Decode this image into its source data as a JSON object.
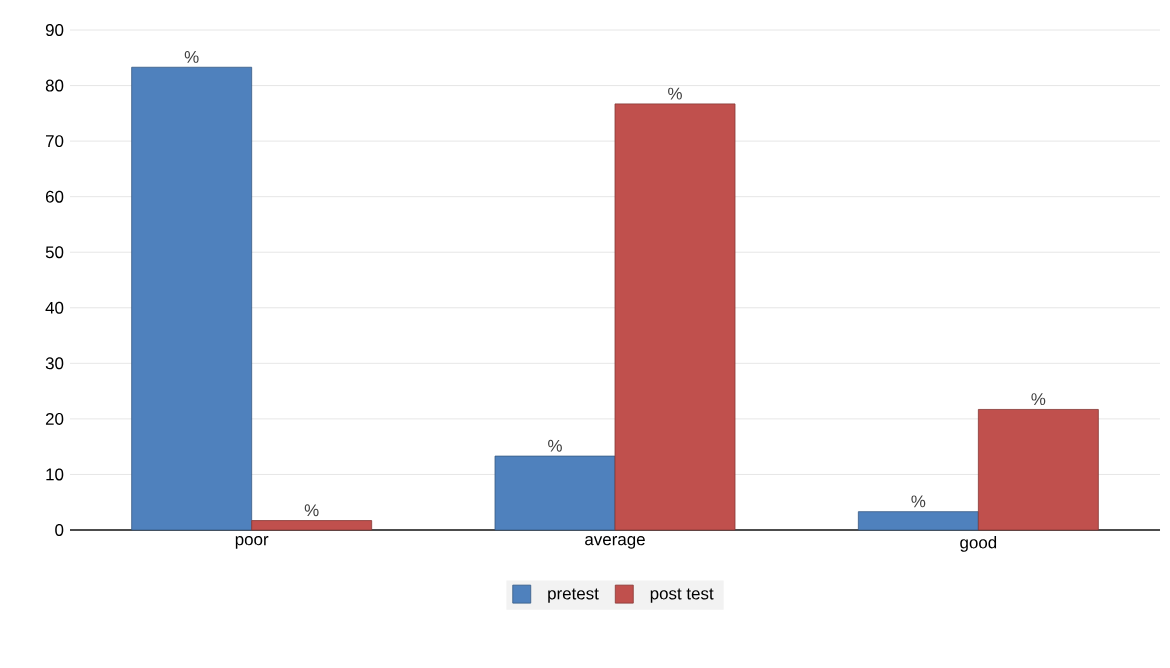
{
  "chart_data": {
    "type": "bar",
    "categories": [
      "poor",
      "average",
      "good"
    ],
    "series": [
      {
        "name": "pretest",
        "color": "#4f81bd",
        "values": [
          83.3,
          13.3,
          3.3
        ],
        "value_labels": [
          "%",
          "%",
          "%"
        ]
      },
      {
        "name": "post test",
        "color": "#c0504d",
        "values": [
          1.7,
          76.7,
          21.7
        ],
        "value_labels": [
          "%",
          "%",
          "%"
        ]
      }
    ],
    "ylim": [
      0,
      90
    ],
    "yticks": [
      0,
      10,
      20,
      30,
      40,
      50,
      60,
      70,
      80,
      90
    ],
    "grid": "y",
    "legend": "bottom"
  }
}
